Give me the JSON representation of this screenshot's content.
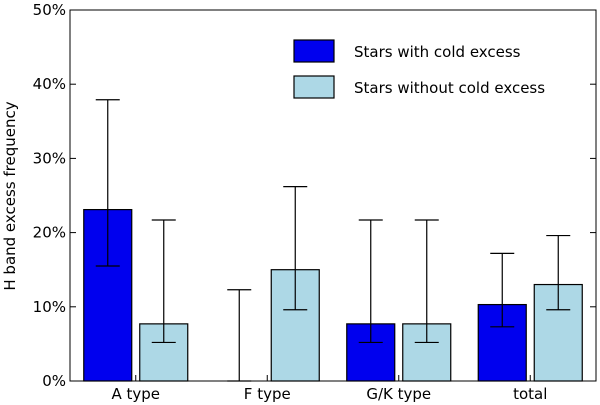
{
  "chart_data": {
    "type": "bar",
    "title": "",
    "xlabel": "",
    "ylabel": "H band excess frequency",
    "categories": [
      "A type",
      "F type",
      "G/K type",
      "total"
    ],
    "ylim": [
      0,
      50
    ],
    "yticks": [
      0,
      10,
      20,
      30,
      40,
      50
    ],
    "ytick_labels": [
      "0%",
      "10%",
      "20%",
      "30%",
      "40%",
      "50%"
    ],
    "legend_position": "top-right",
    "series": [
      {
        "name": "Stars with cold excess",
        "color": "#0000ee",
        "values": [
          23.1,
          0,
          7.7,
          10.3
        ],
        "err_low": [
          15.5,
          0,
          5.2,
          7.3
        ],
        "err_high": [
          37.9,
          12.3,
          21.7,
          17.2
        ]
      },
      {
        "name": "Stars without cold excess",
        "color": "#add8e6",
        "values": [
          7.7,
          15.0,
          7.7,
          13.0
        ],
        "err_low": [
          5.2,
          9.6,
          5.2,
          9.6
        ],
        "err_high": [
          21.7,
          26.2,
          21.7,
          19.6
        ]
      }
    ]
  }
}
